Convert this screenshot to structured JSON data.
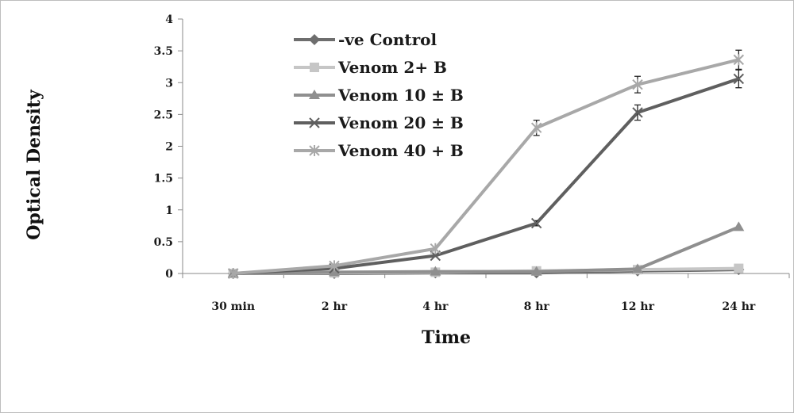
{
  "chart_data": {
    "type": "line",
    "title": "",
    "xlabel": "Time",
    "ylabel": "Optical Density",
    "categories": [
      "30 min",
      "2 hr",
      "4 hr",
      "8 hr",
      "12 hr",
      "24 hr"
    ],
    "ylim": [
      0,
      4
    ],
    "yticks": [
      "0",
      "0.5",
      "1",
      "1.5",
      "2",
      "2.5",
      "3",
      "3.5",
      "4"
    ],
    "grid": false,
    "legend_position": "top-left",
    "series": [
      {
        "name": "-ve Control",
        "marker": "diamond",
        "color": "#6e6e6e",
        "values": [
          0.0,
          0.0,
          0.01,
          0.01,
          0.04,
          0.06
        ]
      },
      {
        "name": "Venom 2+ B",
        "marker": "square",
        "color": "#c6c6c6",
        "values": [
          0.0,
          0.01,
          0.02,
          0.04,
          0.06,
          0.08
        ]
      },
      {
        "name": "Venom 10 ± B",
        "marker": "triangle",
        "color": "#8f8f8f",
        "values": [
          0.0,
          0.02,
          0.03,
          0.03,
          0.07,
          0.73
        ]
      },
      {
        "name": "Venom 20 ± B",
        "marker": "x",
        "color": "#5f5f5f",
        "values": [
          0.0,
          0.08,
          0.28,
          0.79,
          2.53,
          3.06
        ],
        "errors": [
          0,
          0,
          0,
          0.04,
          0.12,
          0.14
        ]
      },
      {
        "name": "Venom 40 + B",
        "marker": "asterisk",
        "color": "#a8a8a8",
        "values": [
          0.0,
          0.12,
          0.39,
          2.29,
          2.97,
          3.36
        ],
        "errors": [
          0,
          0,
          0,
          0.12,
          0.13,
          0.15
        ]
      }
    ]
  }
}
